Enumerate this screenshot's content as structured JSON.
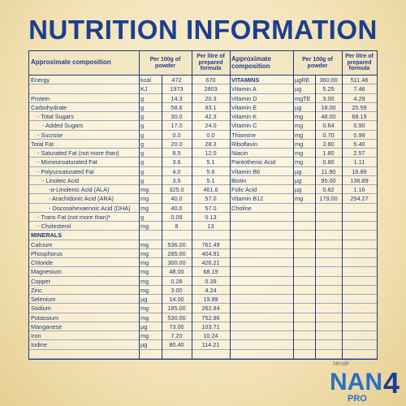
{
  "title": "NUTRITION INFORMATION",
  "left_table": {
    "header": [
      "Approximate composition",
      "Per 100g of powder",
      "Per litre of prepared formula"
    ],
    "rows": [
      [
        "Energy",
        "kcal",
        "472",
        "670"
      ],
      [
        null,
        "KJ",
        "1973",
        "2803"
      ],
      [
        "Protein",
        "g",
        "14.3",
        "20.3"
      ],
      [
        "Carbohydrate",
        "g",
        "58.6",
        "83.1"
      ],
      [
        "- Total Sugars",
        "g",
        "30.0",
        "42.3"
      ],
      [
        "- Added Sugars",
        "g",
        "17.0",
        "24.0"
      ],
      [
        "- Sucrose",
        "g",
        "0.0",
        "0.0"
      ],
      [
        "Total Fat",
        "g",
        "20.0",
        "28.3"
      ],
      [
        "- Saturated Fat (not more than)",
        "g",
        "8.5",
        "12.0"
      ],
      [
        "- Monounsaturated Fat",
        "g",
        "3.6",
        "5.1"
      ],
      [
        "- Polyunsaturated Fat",
        "g",
        "4.0",
        "5.6"
      ],
      [
        "- Linoleic Acid",
        "g",
        "3.5",
        "5.1"
      ],
      [
        "-α-Linolenic Acid (ALA)",
        "mg",
        "325.0",
        "461.6"
      ],
      [
        "- Arachidonic Acid (ARA)",
        "mg",
        "40.0",
        "57.0"
      ],
      [
        "- Docosahexaenoic Acid (DHA)",
        "mg",
        "40.0",
        "57.0"
      ],
      [
        "- Trans Fat (not more than)*",
        "g",
        "0.09",
        "0.13"
      ],
      [
        "- Cholesterol",
        "mg",
        "8",
        "13"
      ],
      [
        "MINERALS"
      ],
      [
        "Calcium",
        "mg",
        "536.00",
        "761.49"
      ],
      [
        "Phosphorus",
        "mg",
        "285.00",
        "404.91"
      ],
      [
        "Chloride",
        "mg",
        "300.00",
        "426.21"
      ],
      [
        "Magnesium",
        "mg",
        "48.00",
        "68.19"
      ],
      [
        "Copper",
        "mg",
        "0.28",
        "0.39"
      ],
      [
        "Zinc",
        "mg",
        "3.00",
        "4.24"
      ],
      [
        "Selenium",
        "µg",
        "14.00",
        "19.89"
      ],
      [
        "Sodium",
        "mg",
        "185.00",
        "262.84"
      ],
      [
        "Potassium",
        "mg",
        "530.00",
        "752.96"
      ],
      [
        "Manganese",
        "µg",
        "73.00",
        "103.71"
      ],
      [
        "Iron",
        "mg",
        "7.20",
        "10.24"
      ],
      [
        "Iodine",
        "µg",
        "80.40",
        "114.21"
      ]
    ]
  },
  "right_table": {
    "header": [
      "Approximate composition",
      "Per 100g of powder",
      "Per litre of prepared formula"
    ],
    "rows": [
      [
        "VITAMINS",
        "µgRE",
        "360.00",
        "511.46"
      ],
      [
        "Vitamin A",
        "µg",
        "5.25",
        "7.46"
      ],
      [
        "Vitamin D",
        "mgTE",
        "3.00",
        "4.29"
      ],
      [
        "Vitamin E",
        "µg",
        "18.00",
        "25.59"
      ],
      [
        "Vitamin K",
        "mg",
        "48.00",
        "68.19"
      ],
      [
        "Vitamin C",
        "mg",
        "0.64",
        "0.90"
      ],
      [
        "Thiamine",
        "mg",
        "0.70",
        "0.99"
      ],
      [
        "Riboflavin",
        "mg",
        "3.80",
        "5.40"
      ],
      [
        "Niacin",
        "mg",
        "1.80",
        "2.57"
      ],
      [
        "Pantothenic Acid",
        "mg",
        "0.80",
        "1.11"
      ],
      [
        "Vitamin B6",
        "µg",
        "11.90",
        "16.89"
      ],
      [
        "Biotin",
        "µg",
        "95.00",
        "136.89"
      ],
      [
        "Folic Acid",
        "µg",
        "0.82",
        "1.16"
      ],
      [
        "Vitamin B12",
        "mg",
        "179.00",
        "254.27"
      ],
      [
        "Choline"
      ]
    ]
  },
  "logo": {
    "brand": "Nestlé",
    "name": "NAN",
    "sub": "PRO",
    "stage": "4"
  }
}
